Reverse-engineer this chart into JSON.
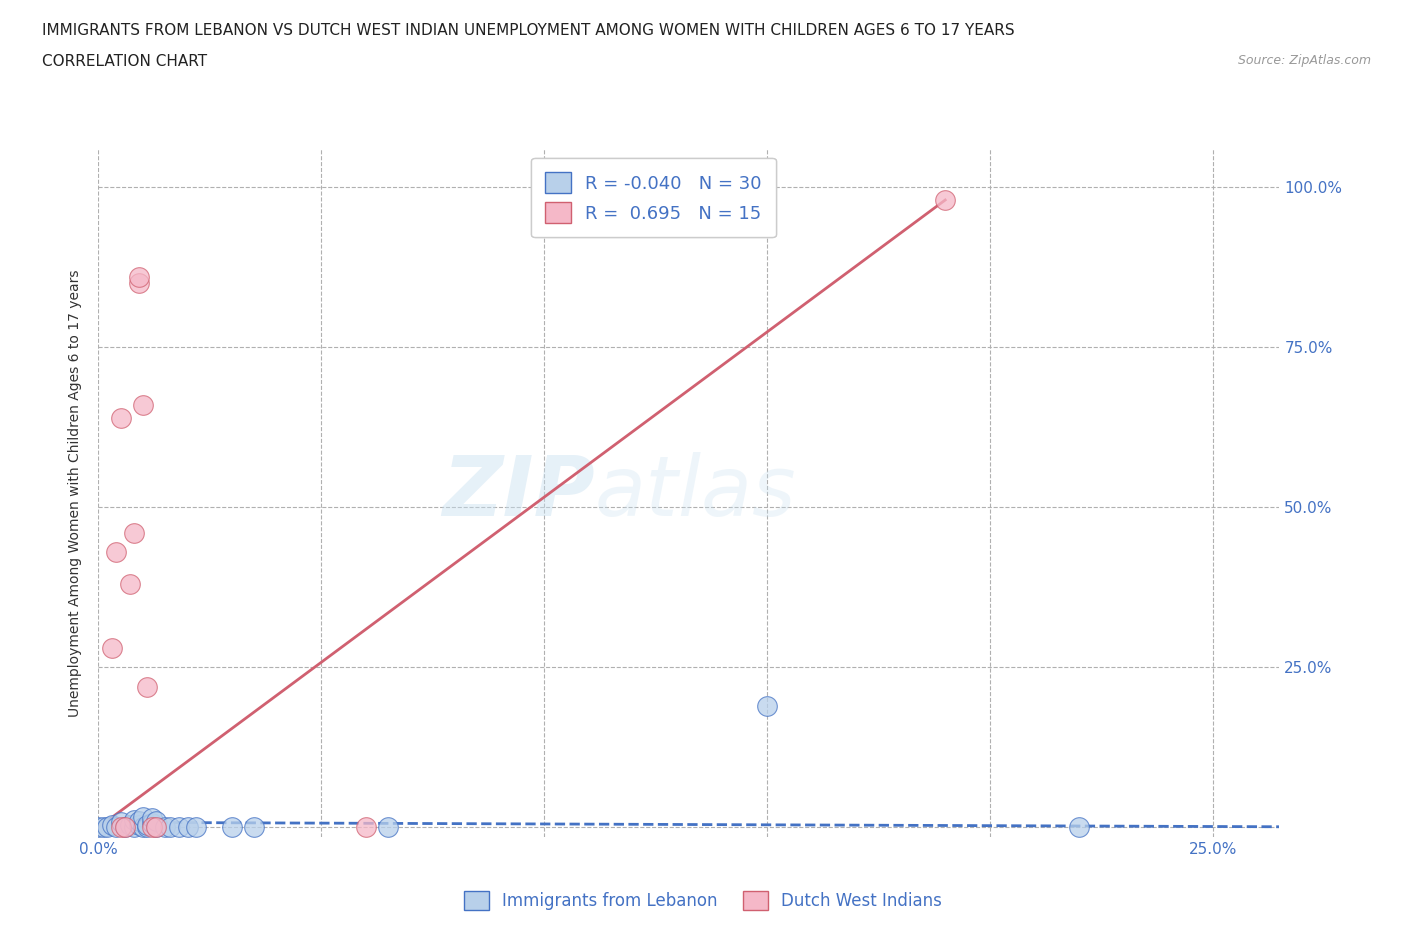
{
  "title_line1": "IMMIGRANTS FROM LEBANON VS DUTCH WEST INDIAN UNEMPLOYMENT AMONG WOMEN WITH CHILDREN AGES 6 TO 17 YEARS",
  "title_line2": "CORRELATION CHART",
  "source_text": "Source: ZipAtlas.com",
  "ylabel": "Unemployment Among Women with Children Ages 6 to 17 years",
  "xlim": [
    0.0,
    0.265
  ],
  "ylim": [
    -0.015,
    1.06
  ],
  "x_ticks": [
    0.0,
    0.05,
    0.1,
    0.15,
    0.2,
    0.25
  ],
  "y_ticks": [
    0.0,
    0.25,
    0.5,
    0.75,
    1.0
  ],
  "watermark_zip": "ZIP",
  "watermark_atlas": "atlas",
  "legend_R1": "-0.040",
  "legend_N1": "30",
  "legend_R2": "0.695",
  "legend_N2": "15",
  "blue_face": "#b8d0ea",
  "blue_edge": "#4472c4",
  "pink_face": "#f5b8c8",
  "pink_edge": "#d06070",
  "blue_line_color": "#4472c4",
  "pink_line_color": "#d06070",
  "grid_color": "#b0b0b0",
  "axis_label_color": "#4472c4",
  "scatter_blue": [
    [
      0.0,
      0.0
    ],
    [
      0.001,
      0.0
    ],
    [
      0.002,
      0.0
    ],
    [
      0.003,
      0.004
    ],
    [
      0.004,
      0.0
    ],
    [
      0.005,
      0.008
    ],
    [
      0.006,
      0.0
    ],
    [
      0.007,
      0.004
    ],
    [
      0.008,
      0.0
    ],
    [
      0.008,
      0.012
    ],
    [
      0.009,
      0.004
    ],
    [
      0.009,
      0.01
    ],
    [
      0.01,
      0.0
    ],
    [
      0.01,
      0.016
    ],
    [
      0.011,
      0.0
    ],
    [
      0.011,
      0.004
    ],
    [
      0.012,
      0.007
    ],
    [
      0.012,
      0.014
    ],
    [
      0.013,
      0.0
    ],
    [
      0.013,
      0.01
    ],
    [
      0.015,
      0.0
    ],
    [
      0.016,
      0.0
    ],
    [
      0.018,
      0.0
    ],
    [
      0.02,
      0.0
    ],
    [
      0.022,
      0.0
    ],
    [
      0.03,
      0.0
    ],
    [
      0.035,
      0.0
    ],
    [
      0.065,
      0.0
    ],
    [
      0.15,
      0.19
    ],
    [
      0.22,
      0.0
    ]
  ],
  "scatter_pink": [
    [
      0.003,
      0.28
    ],
    [
      0.004,
      0.43
    ],
    [
      0.005,
      0.0
    ],
    [
      0.005,
      0.64
    ],
    [
      0.006,
      0.0
    ],
    [
      0.007,
      0.38
    ],
    [
      0.008,
      0.46
    ],
    [
      0.009,
      0.85
    ],
    [
      0.009,
      0.86
    ],
    [
      0.01,
      0.66
    ],
    [
      0.011,
      0.22
    ],
    [
      0.012,
      0.0
    ],
    [
      0.013,
      0.0
    ],
    [
      0.06,
      0.0
    ],
    [
      0.19,
      0.98
    ]
  ],
  "blue_trend_x": [
    0.0,
    0.265
  ],
  "blue_trend_y": [
    0.008,
    0.001
  ],
  "pink_trend_x": [
    0.0,
    0.19
  ],
  "pink_trend_y": [
    0.0,
    0.98
  ]
}
